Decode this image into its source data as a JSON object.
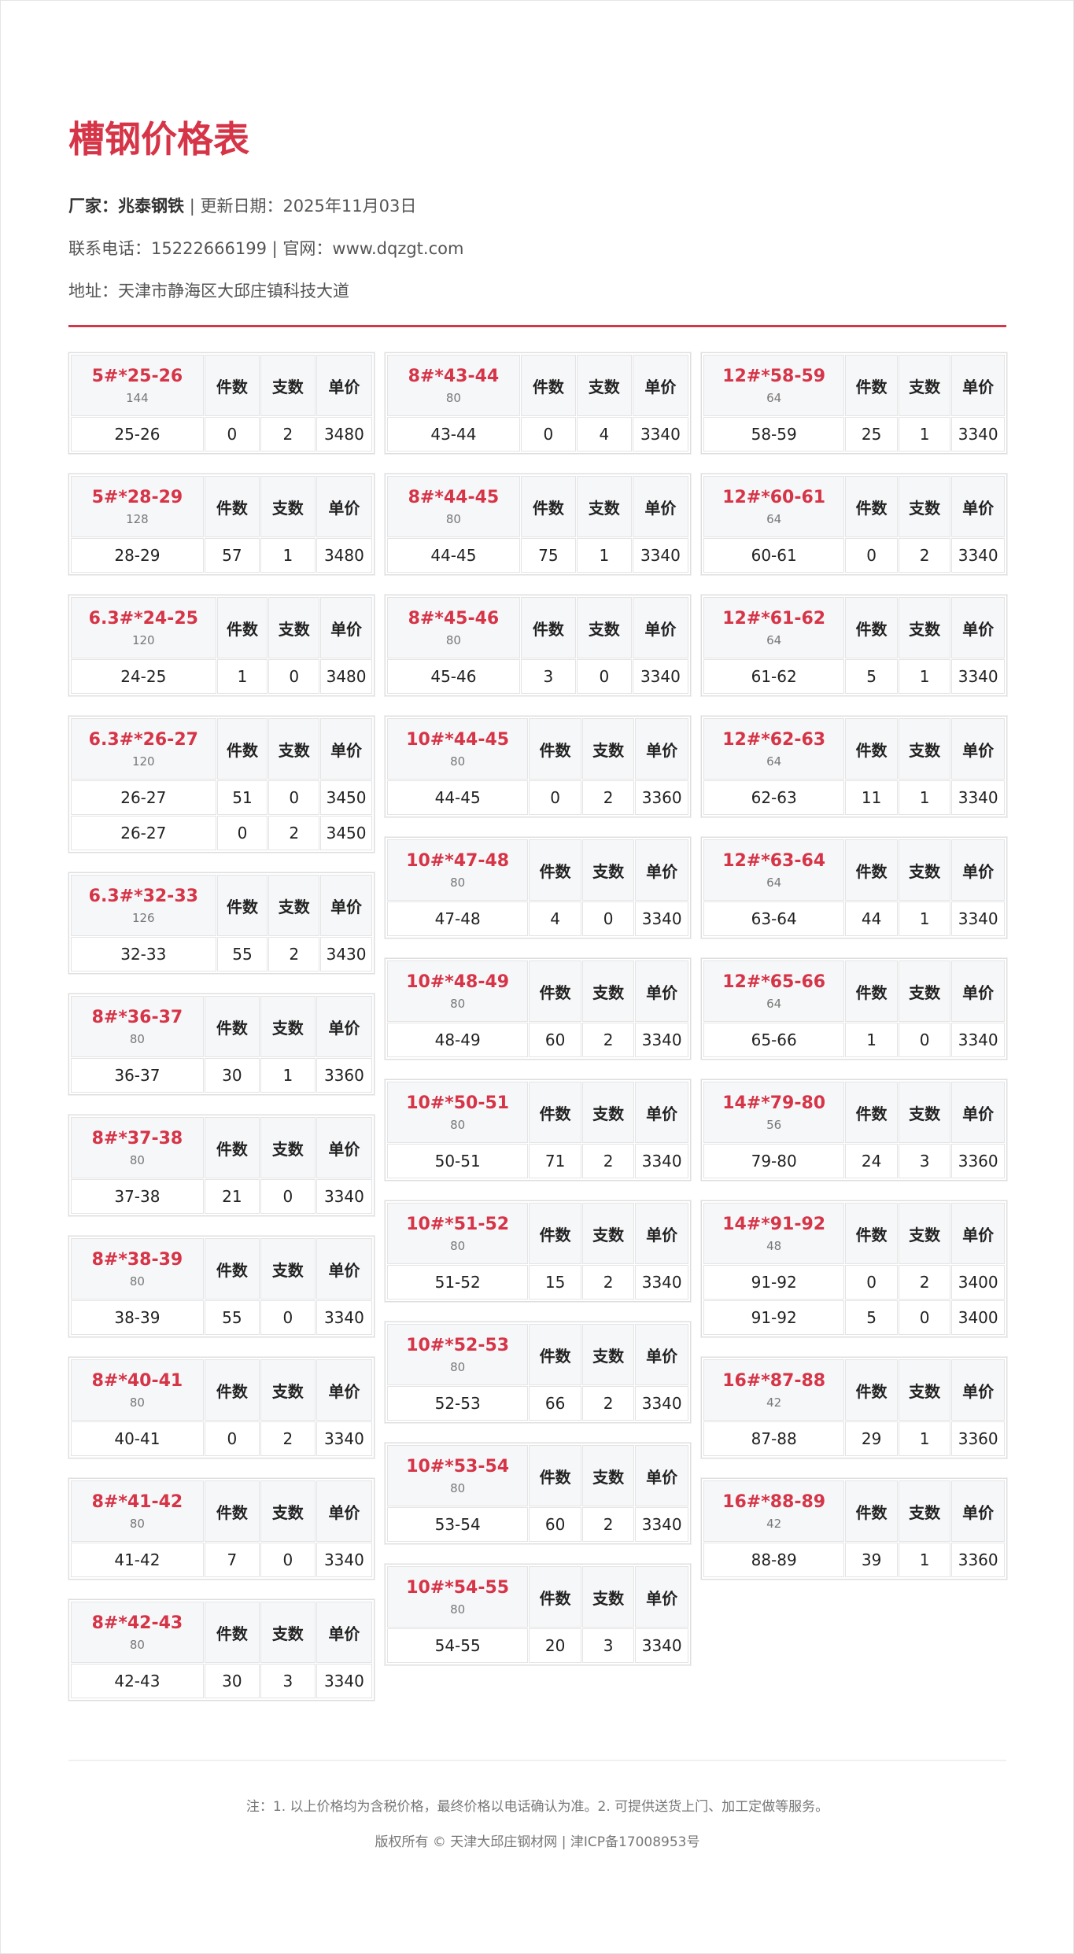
{
  "title": "槽钢价格表",
  "info": {
    "maker_label": "厂家：兆泰钢铁",
    "update": "| 更新日期：2025年11月03日",
    "contact": "联系电话：15222666199 | 官网：www.dqzgt.com",
    "address": "地址：天津市静海区大邱庄镇科技大道"
  },
  "headers": [
    "件数",
    "支数",
    "单价"
  ],
  "columns": [
    [
      {
        "name": "5#*25-26",
        "sub": "144",
        "rows": [
          [
            "25-26",
            "0",
            "2",
            "3480"
          ]
        ]
      },
      {
        "name": "5#*28-29",
        "sub": "128",
        "rows": [
          [
            "28-29",
            "57",
            "1",
            "3480"
          ]
        ]
      },
      {
        "name": "6.3#*24-25",
        "sub": "120",
        "rows": [
          [
            "24-25",
            "1",
            "0",
            "3480"
          ]
        ]
      },
      {
        "name": "6.3#*26-27",
        "sub": "120",
        "rows": [
          [
            "26-27",
            "51",
            "0",
            "3450"
          ],
          [
            "26-27",
            "0",
            "2",
            "3450"
          ]
        ]
      },
      {
        "name": "6.3#*32-33",
        "sub": "126",
        "rows": [
          [
            "32-33",
            "55",
            "2",
            "3430"
          ]
        ]
      },
      {
        "name": "8#*36-37",
        "sub": "80",
        "rows": [
          [
            "36-37",
            "30",
            "1",
            "3360"
          ]
        ]
      },
      {
        "name": "8#*37-38",
        "sub": "80",
        "rows": [
          [
            "37-38",
            "21",
            "0",
            "3340"
          ]
        ]
      },
      {
        "name": "8#*38-39",
        "sub": "80",
        "rows": [
          [
            "38-39",
            "55",
            "0",
            "3340"
          ]
        ]
      },
      {
        "name": "8#*40-41",
        "sub": "80",
        "rows": [
          [
            "40-41",
            "0",
            "2",
            "3340"
          ]
        ]
      },
      {
        "name": "8#*41-42",
        "sub": "80",
        "rows": [
          [
            "41-42",
            "7",
            "0",
            "3340"
          ]
        ]
      },
      {
        "name": "8#*42-43",
        "sub": "80",
        "rows": [
          [
            "42-43",
            "30",
            "3",
            "3340"
          ]
        ]
      }
    ],
    [
      {
        "name": "8#*43-44",
        "sub": "80",
        "rows": [
          [
            "43-44",
            "0",
            "4",
            "3340"
          ]
        ]
      },
      {
        "name": "8#*44-45",
        "sub": "80",
        "rows": [
          [
            "44-45",
            "75",
            "1",
            "3340"
          ]
        ]
      },
      {
        "name": "8#*45-46",
        "sub": "80",
        "rows": [
          [
            "45-46",
            "3",
            "0",
            "3340"
          ]
        ]
      },
      {
        "name": "10#*44-45",
        "sub": "80",
        "rows": [
          [
            "44-45",
            "0",
            "2",
            "3360"
          ]
        ]
      },
      {
        "name": "10#*47-48",
        "sub": "80",
        "rows": [
          [
            "47-48",
            "4",
            "0",
            "3340"
          ]
        ]
      },
      {
        "name": "10#*48-49",
        "sub": "80",
        "rows": [
          [
            "48-49",
            "60",
            "2",
            "3340"
          ]
        ]
      },
      {
        "name": "10#*50-51",
        "sub": "80",
        "rows": [
          [
            "50-51",
            "71",
            "2",
            "3340"
          ]
        ]
      },
      {
        "name": "10#*51-52",
        "sub": "80",
        "rows": [
          [
            "51-52",
            "15",
            "2",
            "3340"
          ]
        ]
      },
      {
        "name": "10#*52-53",
        "sub": "80",
        "rows": [
          [
            "52-53",
            "66",
            "2",
            "3340"
          ]
        ]
      },
      {
        "name": "10#*53-54",
        "sub": "80",
        "rows": [
          [
            "53-54",
            "60",
            "2",
            "3340"
          ]
        ]
      },
      {
        "name": "10#*54-55",
        "sub": "80",
        "rows": [
          [
            "54-55",
            "20",
            "3",
            "3340"
          ]
        ]
      }
    ],
    [
      {
        "name": "12#*58-59",
        "sub": "64",
        "rows": [
          [
            "58-59",
            "25",
            "1",
            "3340"
          ]
        ]
      },
      {
        "name": "12#*60-61",
        "sub": "64",
        "rows": [
          [
            "60-61",
            "0",
            "2",
            "3340"
          ]
        ]
      },
      {
        "name": "12#*61-62",
        "sub": "64",
        "rows": [
          [
            "61-62",
            "5",
            "1",
            "3340"
          ]
        ]
      },
      {
        "name": "12#*62-63",
        "sub": "64",
        "rows": [
          [
            "62-63",
            "11",
            "1",
            "3340"
          ]
        ]
      },
      {
        "name": "12#*63-64",
        "sub": "64",
        "rows": [
          [
            "63-64",
            "44",
            "1",
            "3340"
          ]
        ]
      },
      {
        "name": "12#*65-66",
        "sub": "64",
        "rows": [
          [
            "65-66",
            "1",
            "0",
            "3340"
          ]
        ]
      },
      {
        "name": "14#*79-80",
        "sub": "56",
        "rows": [
          [
            "79-80",
            "24",
            "3",
            "3360"
          ]
        ]
      },
      {
        "name": "14#*91-92",
        "sub": "48",
        "rows": [
          [
            "91-92",
            "0",
            "2",
            "3400"
          ],
          [
            "91-92",
            "5",
            "0",
            "3400"
          ]
        ]
      },
      {
        "name": "16#*87-88",
        "sub": "42",
        "rows": [
          [
            "87-88",
            "29",
            "1",
            "3360"
          ]
        ]
      },
      {
        "name": "16#*88-89",
        "sub": "42",
        "rows": [
          [
            "88-89",
            "39",
            "1",
            "3360"
          ]
        ]
      }
    ]
  ],
  "footer": {
    "note": "注：1. 以上价格均为含税价格，最终价格以电话确认为准。2. 可提供送货上门、加工定做等服务。",
    "copyright": "版权所有 © 天津大邱庄钢材网 | 津ICP备17008953号"
  },
  "colors": {
    "accent": "#d63447",
    "range": "#9b6a3a",
    "price": "#1a6fc4"
  }
}
